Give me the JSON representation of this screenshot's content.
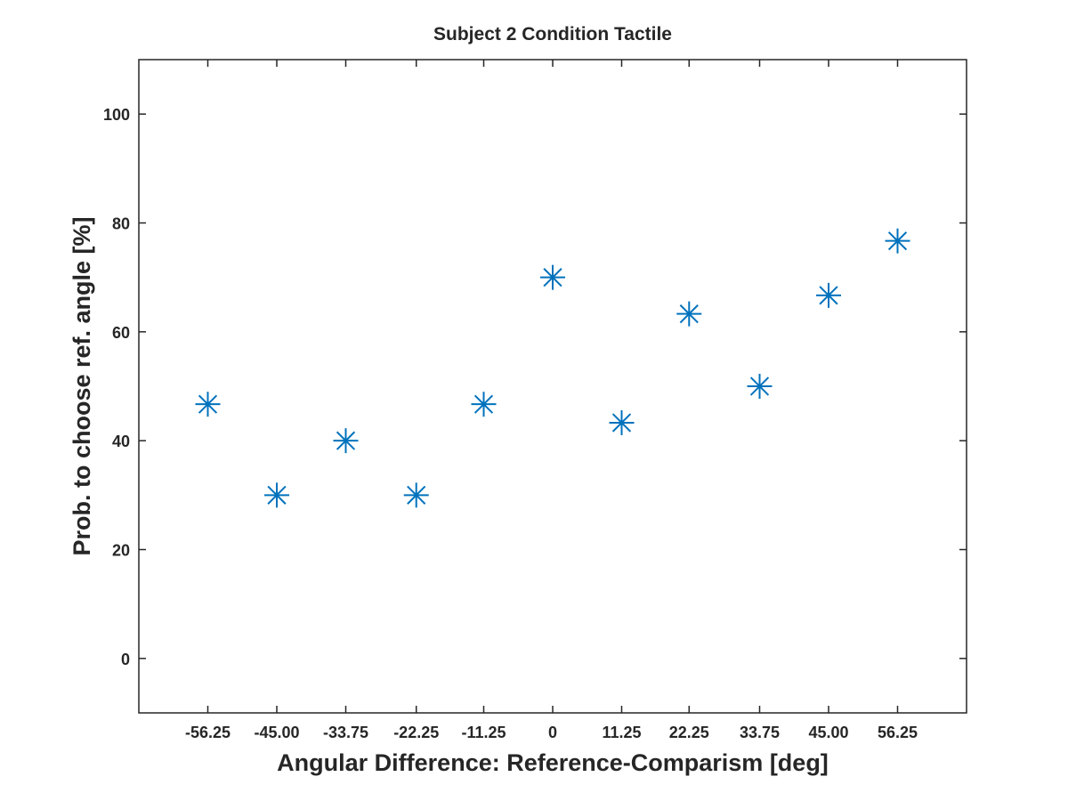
{
  "chart_data": {
    "type": "scatter",
    "title": "Subject 2 Condition Tactile",
    "xlabel": "Angular Difference: Reference-Comparism [deg]",
    "ylabel": "Prob. to choose ref. angle [%]",
    "xlim": [
      -67.5,
      67.5
    ],
    "ylim": [
      -10,
      110
    ],
    "x_tick_values": [
      -56.25,
      -45.0,
      -33.75,
      -22.25,
      -11.25,
      0,
      11.25,
      22.25,
      33.75,
      45.0,
      56.25
    ],
    "x_tick_labels": [
      "-56.25",
      "-45.00",
      "-33.75",
      "-22.25",
      "-11.25",
      "0",
      "11.25",
      "22.25",
      "33.75",
      "45.00",
      "56.25"
    ],
    "y_tick_values": [
      0,
      20,
      40,
      60,
      80,
      100
    ],
    "y_tick_labels": [
      "0",
      "20",
      "40",
      "60",
      "80",
      "100"
    ],
    "marker": "asterisk",
    "marker_color": "#0072BD",
    "grid": false,
    "points": [
      {
        "x": -56.25,
        "y": 46.7
      },
      {
        "x": -45.0,
        "y": 30.0
      },
      {
        "x": -33.75,
        "y": 40.0
      },
      {
        "x": -22.25,
        "y": 30.0
      },
      {
        "x": -11.25,
        "y": 46.7
      },
      {
        "x": 0,
        "y": 70.0
      },
      {
        "x": 11.25,
        "y": 43.3
      },
      {
        "x": 22.25,
        "y": 63.3
      },
      {
        "x": 33.75,
        "y": 50.0
      },
      {
        "x": 45.0,
        "y": 66.7
      },
      {
        "x": 56.25,
        "y": 76.7
      }
    ]
  }
}
